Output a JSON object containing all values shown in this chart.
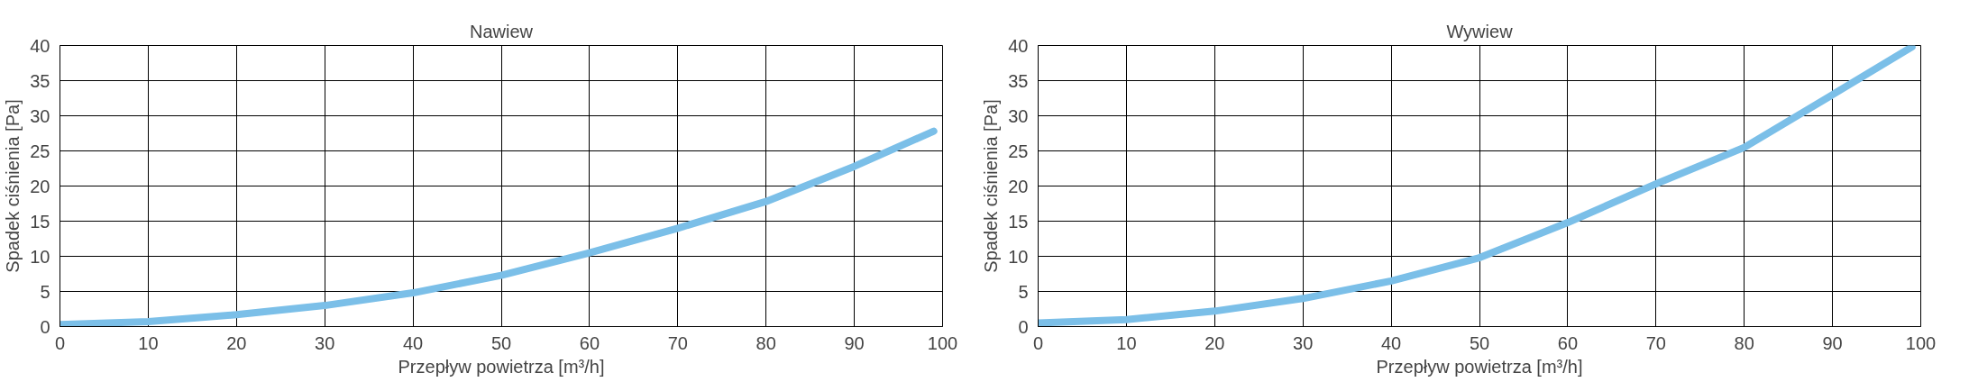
{
  "chart_data": [
    {
      "type": "line",
      "title": "Nawiew",
      "xlabel": "Przepływ powietrza [m³/h]",
      "ylabel": "Spadek ciśnienia [Pa]",
      "x": [
        0,
        10,
        20,
        30,
        40,
        50,
        60,
        70,
        80,
        90,
        99
      ],
      "series": [
        {
          "color": "#7bbfe8",
          "values": [
            0.3,
            0.7,
            1.7,
            3.0,
            4.8,
            7.3,
            10.5,
            14.0,
            17.8,
            22.8,
            27.8
          ]
        }
      ],
      "xlim": [
        0,
        100
      ],
      "xticks": [
        0,
        10,
        20,
        30,
        40,
        50,
        60,
        70,
        80,
        90,
        100
      ],
      "ylim": [
        0,
        40
      ],
      "yticks": [
        0,
        5,
        10,
        15,
        20,
        25,
        30,
        35,
        40
      ],
      "grid": true,
      "marker": "none",
      "line_style": "solid"
    },
    {
      "type": "line",
      "title": "Wywiew",
      "xlabel": "Przepływ powietrza [m³/h]",
      "ylabel": "Spadek ciśnienia [Pa]",
      "x": [
        0,
        10,
        20,
        30,
        40,
        50,
        60,
        70,
        80,
        90,
        99
      ],
      "series": [
        {
          "color": "#7bbfe8",
          "values": [
            0.5,
            1.0,
            2.2,
            4.0,
            6.5,
            9.8,
            14.8,
            20.3,
            25.5,
            33.0,
            39.8
          ]
        }
      ],
      "xlim": [
        0,
        100
      ],
      "xticks": [
        0,
        10,
        20,
        30,
        40,
        50,
        60,
        70,
        80,
        90,
        100
      ],
      "ylim": [
        0,
        40
      ],
      "yticks": [
        0,
        5,
        10,
        15,
        20,
        25,
        30,
        35,
        40
      ],
      "grid": true,
      "marker": "none",
      "line_style": "solid"
    }
  ]
}
